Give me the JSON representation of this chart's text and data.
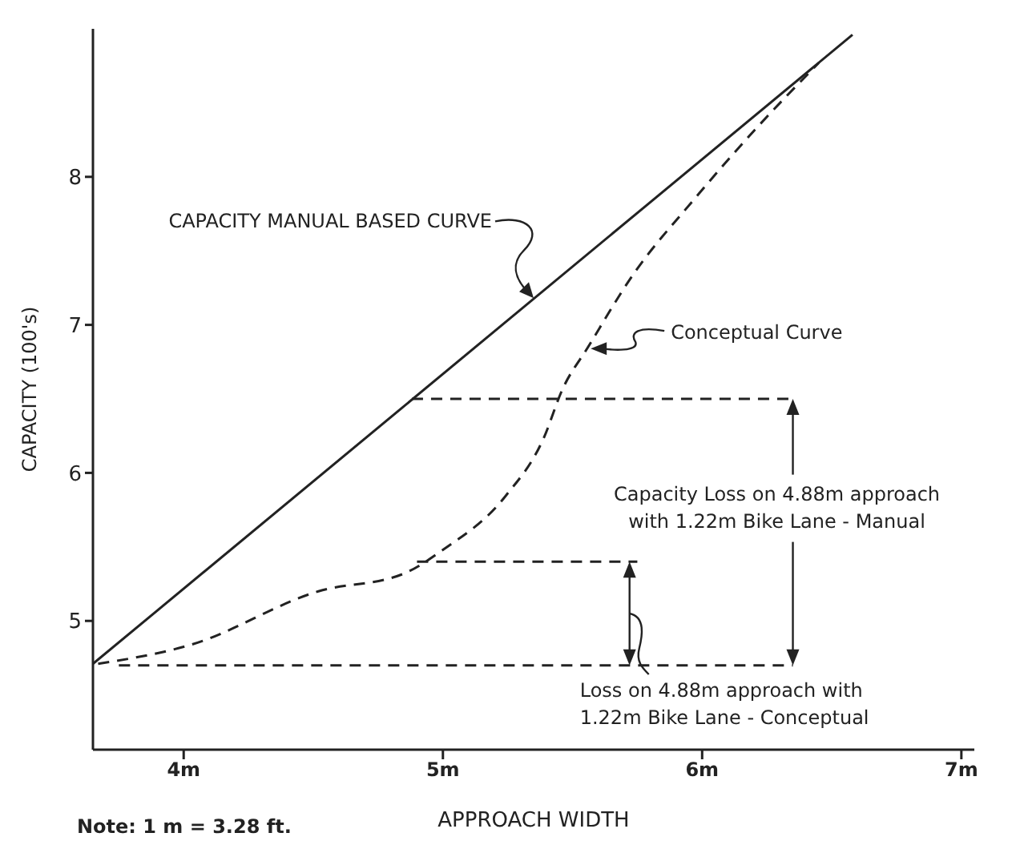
{
  "chart_data": {
    "type": "line",
    "xlabel": "APPROACH WIDTH",
    "ylabel": "CAPACITY (100's)",
    "xlim": [
      3.65,
      7.05
    ],
    "ylim": [
      4.13,
      9.0
    ],
    "xticks": [
      {
        "value": 4,
        "label": "4m"
      },
      {
        "value": 5,
        "label": "5m"
      },
      {
        "value": 6,
        "label": "6m"
      },
      {
        "value": 7,
        "label": "7m"
      }
    ],
    "yticks": [
      5,
      6,
      7,
      8
    ],
    "grid": false,
    "legend": false,
    "marker": "none",
    "series": [
      {
        "color": "#222222",
        "line_style": "solid",
        "x": [
          3.65,
          6.58
        ],
        "values": [
          4.71,
          8.96
        ]
      },
      {
        "color": "#222222",
        "line_style": "dashed",
        "x": [
          3.67,
          4.03,
          4.52,
          4.85,
          5.0,
          5.24,
          5.39,
          5.46,
          5.56,
          5.73,
          5.97,
          6.21,
          6.45
        ],
        "values": [
          4.71,
          4.84,
          5.2,
          5.32,
          5.48,
          5.84,
          6.24,
          6.56,
          6.85,
          7.33,
          7.85,
          8.33,
          8.77
        ]
      },
      {
        "color": "#222222",
        "line_style": "dashed",
        "x": [
          4.88,
          6.35
        ],
        "values": [
          6.5,
          6.5
        ]
      },
      {
        "color": "#222222",
        "line_style": "dashed",
        "x": [
          4.9,
          5.75
        ],
        "values": [
          5.4,
          5.4
        ]
      },
      {
        "color": "#222222",
        "line_style": "dashed",
        "x": [
          3.75,
          6.35
        ],
        "values": [
          4.7,
          4.7
        ]
      }
    ],
    "annotations": [
      {
        "text": "CAPACITY MANUAL BASED CURVE",
        "x": 5.35,
        "y": 7.18
      },
      {
        "text": "Conceptual Curve",
        "x": 5.57,
        "y": 6.84
      },
      "Capacity Loss on 4.88m approach\nwith 1.22m Bike Lane - Manual",
      "Loss on 4.88m approach with\n1.22m Bike Lane - Conceptual",
      "Note:  1 m = 3.28 ft."
    ]
  }
}
